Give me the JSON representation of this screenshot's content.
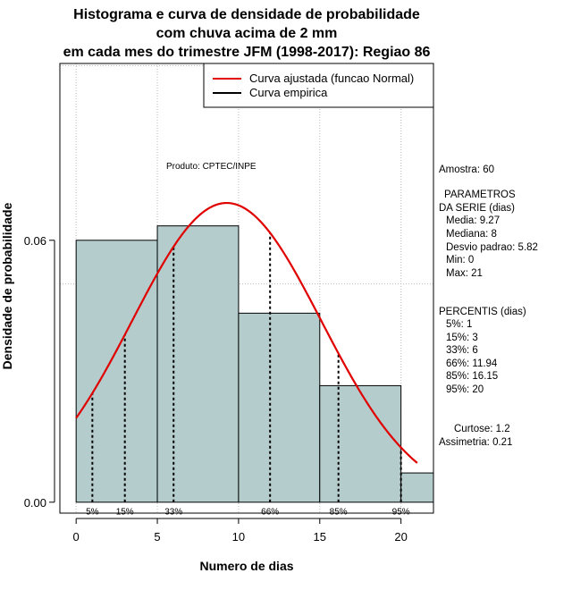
{
  "chart_data": {
    "type": "bar",
    "title_lines": [
      "Histograma e curva de densidade de probabilidade",
      "com chuva acima de 2 mm",
      "em cada mes do trimestre JFM (1998-2017): Regiao 86"
    ],
    "xlabel": "Numero de dias",
    "ylabel": "Densidade de probabilidade",
    "xlim": [
      -1,
      22
    ],
    "ylim": [
      -0.0025,
      0.1005
    ],
    "x_ticks": [
      0,
      5,
      10,
      15,
      20
    ],
    "y_ticks": [
      0.0,
      0.06
    ],
    "y_tick_labels": [
      "0.00",
      "0.06"
    ],
    "grid_x": [
      0,
      5,
      10,
      15,
      20
    ],
    "grid_y": [
      0.05,
      0.1
    ],
    "bins": [
      {
        "start": 0,
        "end": 5,
        "density": 0.06
      },
      {
        "start": 5,
        "end": 10,
        "density": 0.0633
      },
      {
        "start": 10,
        "end": 15,
        "density": 0.0433
      },
      {
        "start": 15,
        "end": 20,
        "density": 0.0267
      },
      {
        "start": 20,
        "end": 22,
        "density": 0.0067
      }
    ],
    "bar_color": "#b4cccc",
    "normal_fit": {
      "mean": 9.27,
      "sd": 5.82,
      "x_range": [
        0,
        21
      ],
      "color": "#e00000"
    },
    "legend": [
      {
        "label": "Curva ajustada (funcao Normal)",
        "color": "#e00000"
      },
      {
        "label": "Curva empirica",
        "color": "#000000"
      }
    ],
    "percentile_lines": [
      {
        "x": 1,
        "label": "5%"
      },
      {
        "x": 3,
        "label": "15%"
      },
      {
        "x": 6,
        "label": "33%"
      },
      {
        "x": 11.94,
        "label": "66%"
      },
      {
        "x": 16.15,
        "label": "85%"
      },
      {
        "x": 20,
        "label": "95%"
      }
    ],
    "annotation": "Produto: CPTEC/INPE"
  },
  "side_panel": {
    "amostra": "Amostra: 60",
    "parametros_title_1": "PARAMETROS",
    "parametros_title_2": "DA SERIE (dias)",
    "media": "Media: 9.27",
    "mediana": "Mediana: 8",
    "desvio": "Desvio padrao: 5.82",
    "min": "Min: 0",
    "max": "Max: 21",
    "percentis_title": "PERCENTIS (dias)",
    "p5": "5%: 1",
    "p15": "15%: 3",
    "p33": "33%: 6",
    "p66": "66%: 11.94",
    "p85": "85%: 16.15",
    "p95": "95%: 20",
    "curtose": "Curtose: 1.2",
    "assimetria": "Assimetria: 0.21"
  }
}
